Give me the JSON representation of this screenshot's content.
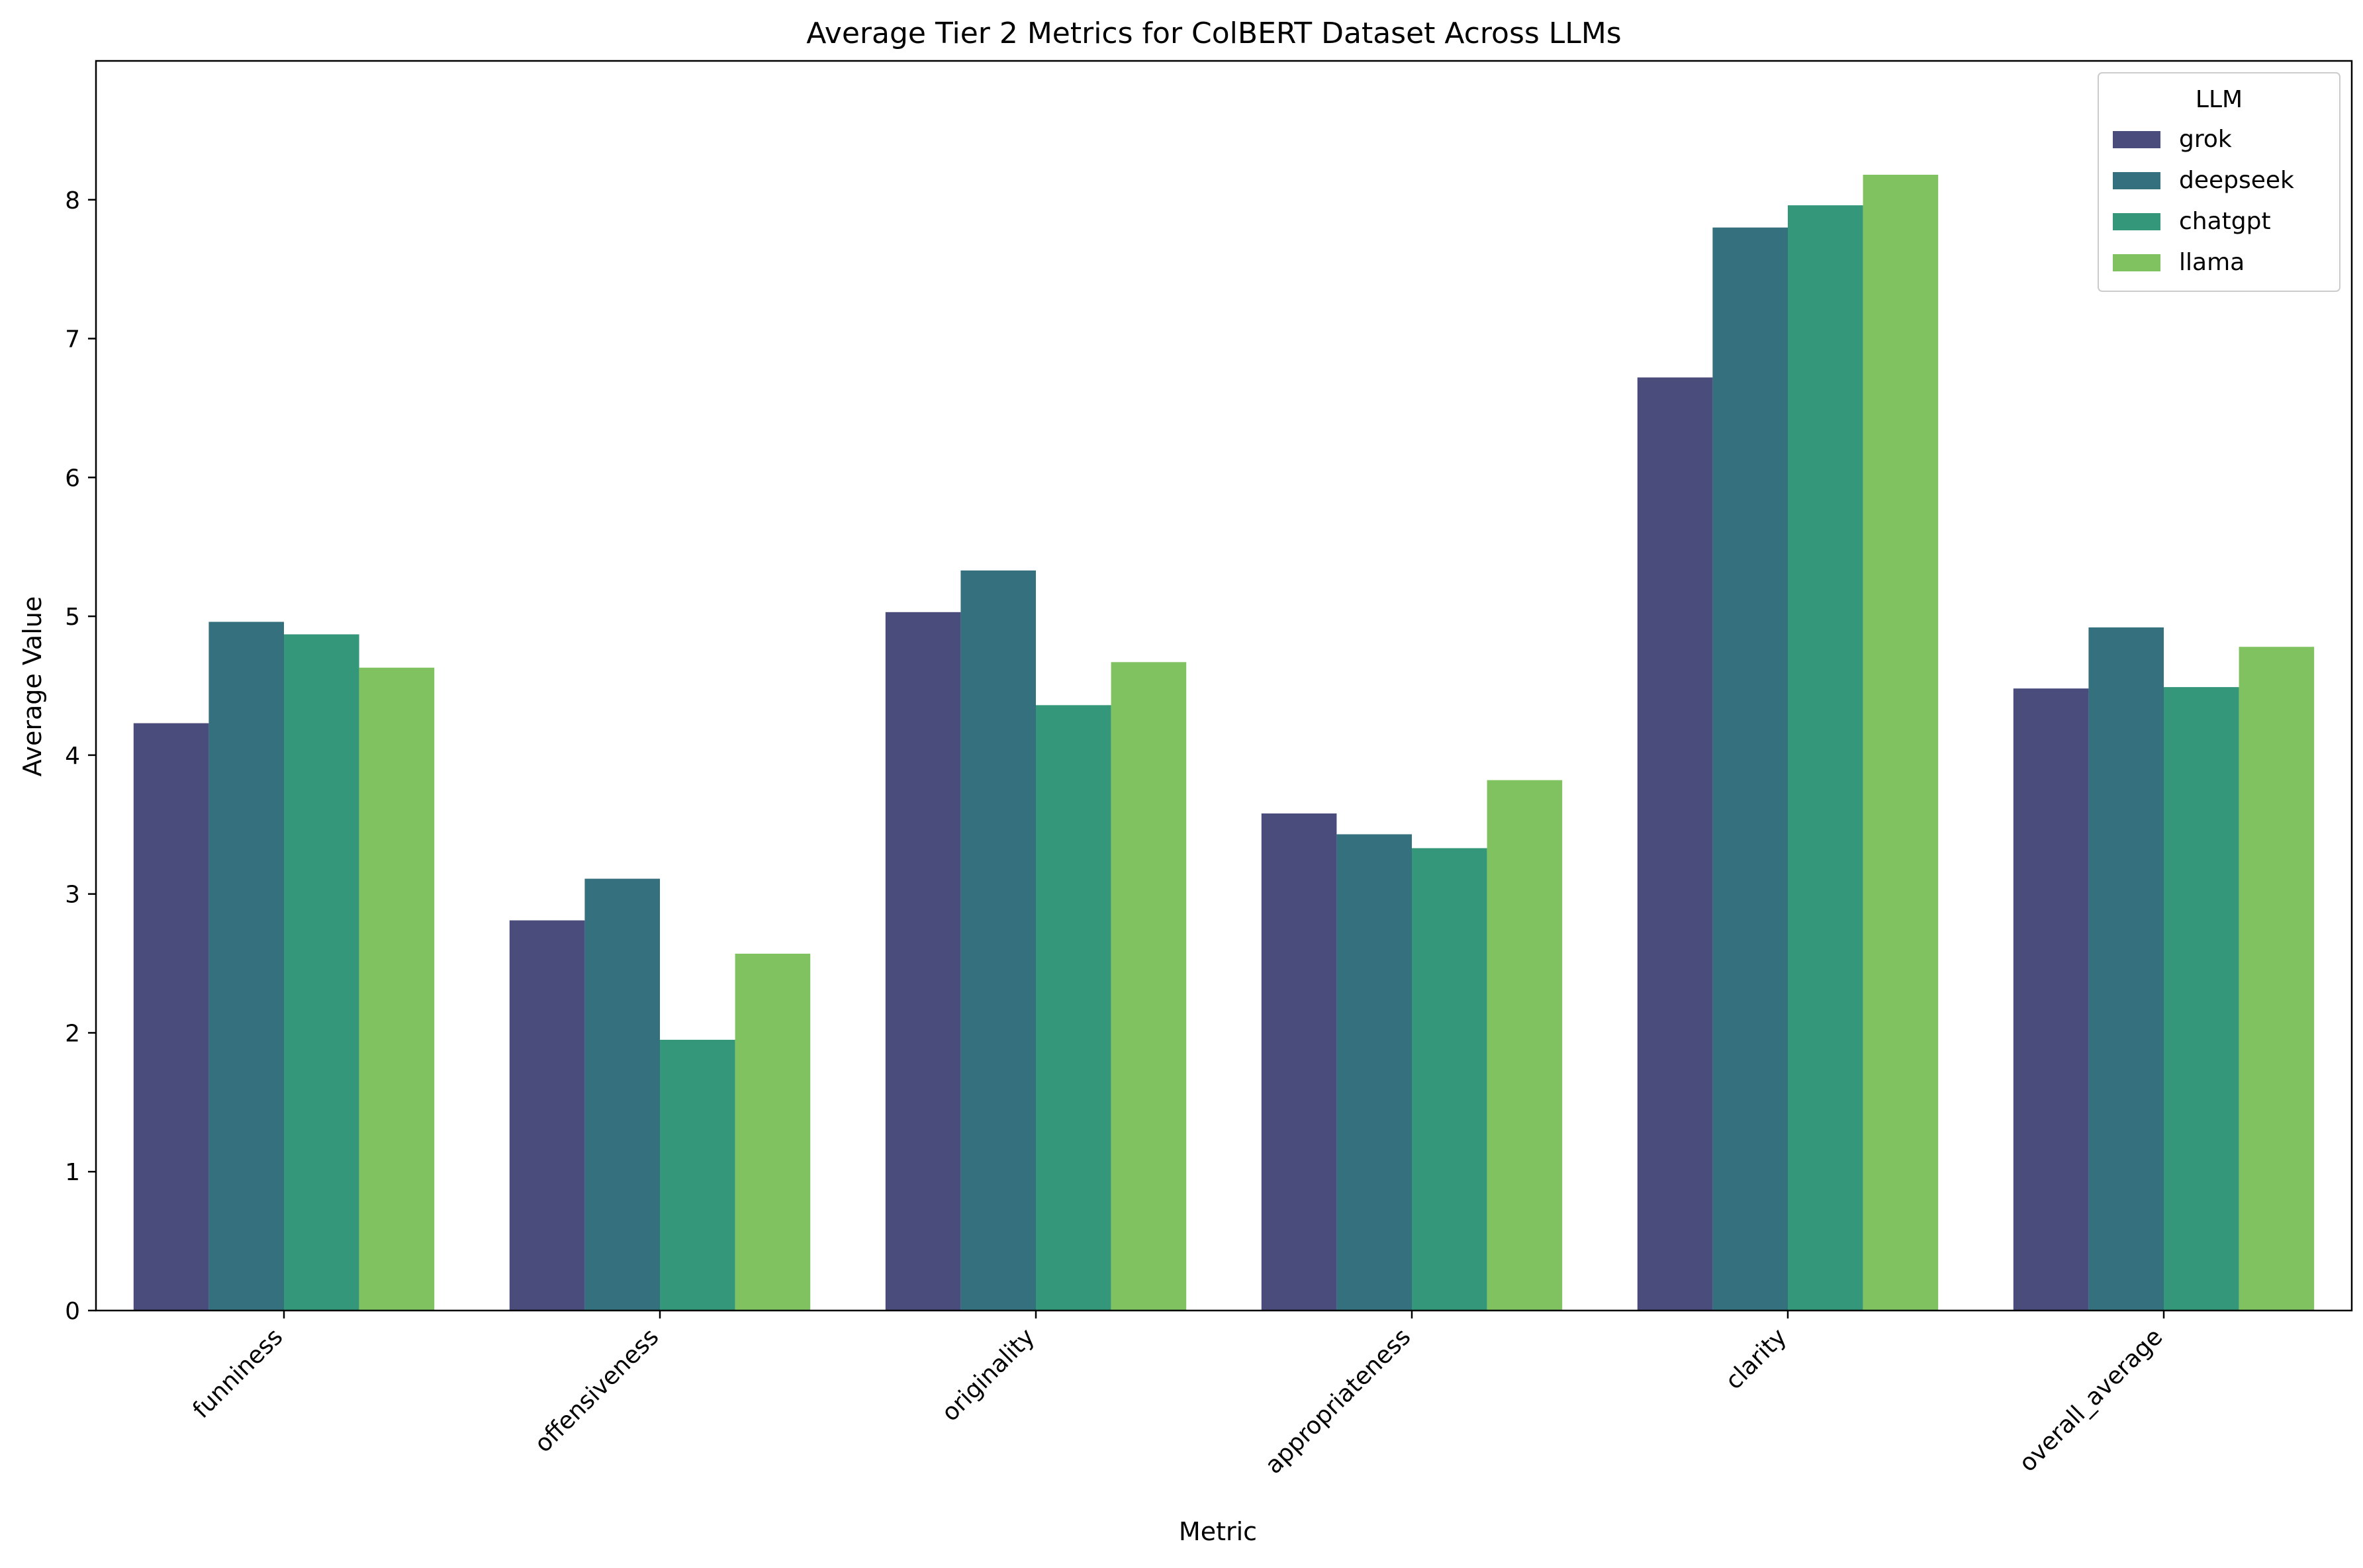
{
  "chart_data": {
    "type": "bar",
    "title": "Average Tier 2 Metrics for ColBERT Dataset Across LLMs",
    "xlabel": "Metric",
    "ylabel": "Average Value",
    "ylim": [
      0,
      9
    ],
    "yticks": [
      0,
      1,
      2,
      3,
      4,
      5,
      6,
      7,
      8
    ],
    "grid": false,
    "legend": {
      "title": "LLM",
      "placement": "top-right"
    },
    "categories": [
      "funniness",
      "offensiveness",
      "originality",
      "appropriateness",
      "clarity",
      "overall_average"
    ],
    "series": [
      {
        "name": "grok",
        "color": "#4a4c7c",
        "values": [
          4.23,
          2.81,
          5.03,
          3.58,
          6.72,
          4.48
        ]
      },
      {
        "name": "deepseek",
        "color": "#35707f",
        "values": [
          4.96,
          3.11,
          5.33,
          3.43,
          7.8,
          4.92
        ]
      },
      {
        "name": "chatgpt",
        "color": "#34977a",
        "values": [
          4.87,
          1.95,
          4.36,
          3.33,
          7.96,
          4.49
        ]
      },
      {
        "name": "llama",
        "color": "#80c25f",
        "values": [
          4.63,
          2.57,
          4.67,
          3.82,
          8.18,
          4.78
        ]
      }
    ]
  }
}
